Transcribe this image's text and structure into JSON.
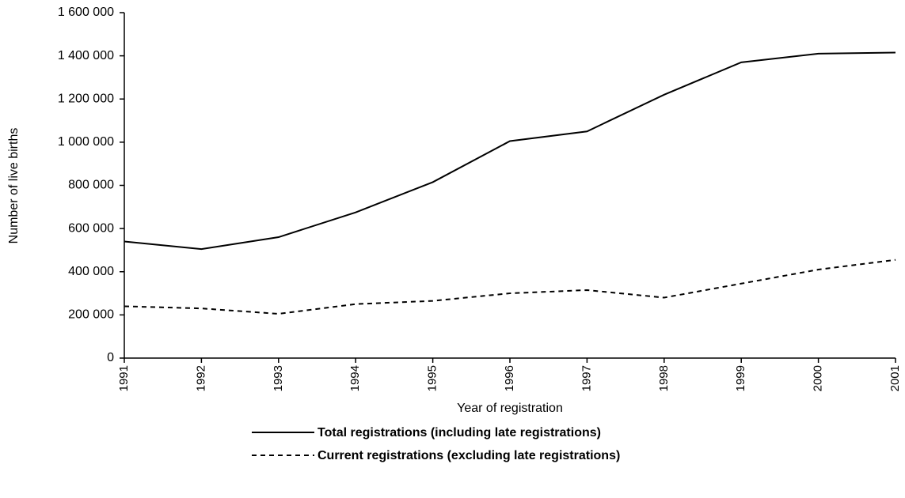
{
  "chart_data": {
    "type": "line",
    "x_label": "Year of registration",
    "y_label": "Number of live births",
    "categories": [
      "1991",
      "1992",
      "1993",
      "1994",
      "1995",
      "1996",
      "1997",
      "1998",
      "1999",
      "2000",
      "2001"
    ],
    "series": [
      {
        "name": "Total registrations (including late registrations)",
        "color": "#000000",
        "line_style": "solid",
        "values": [
          540000,
          505000,
          560000,
          675000,
          815000,
          1005000,
          1050000,
          1220000,
          1370000,
          1410000,
          1415000
        ]
      },
      {
        "name": "Current registrations (excluding late registrations)",
        "color": "#000000",
        "line_style": "dashed",
        "values": [
          240000,
          230000,
          205000,
          250000,
          265000,
          300000,
          315000,
          280000,
          345000,
          410000,
          455000
        ]
      }
    ],
    "ylim": [
      0,
      1600000
    ],
    "yticks": [
      0,
      {
        "value": 200000,
        "label": "200 000"
      },
      {
        "value": 400000,
        "label": "400 000"
      },
      {
        "value": 600000,
        "label": "600 000"
      },
      {
        "value": 800000,
        "label": "800 000"
      },
      {
        "value": 1000000,
        "label": "1 000 000"
      },
      {
        "value": 1200000,
        "label": "1 200 000"
      },
      {
        "value": 1400000,
        "label": "1 400 000"
      },
      {
        "value": 1600000,
        "label": "1 600 000"
      }
    ],
    "grid": false,
    "legend": "bottom"
  }
}
